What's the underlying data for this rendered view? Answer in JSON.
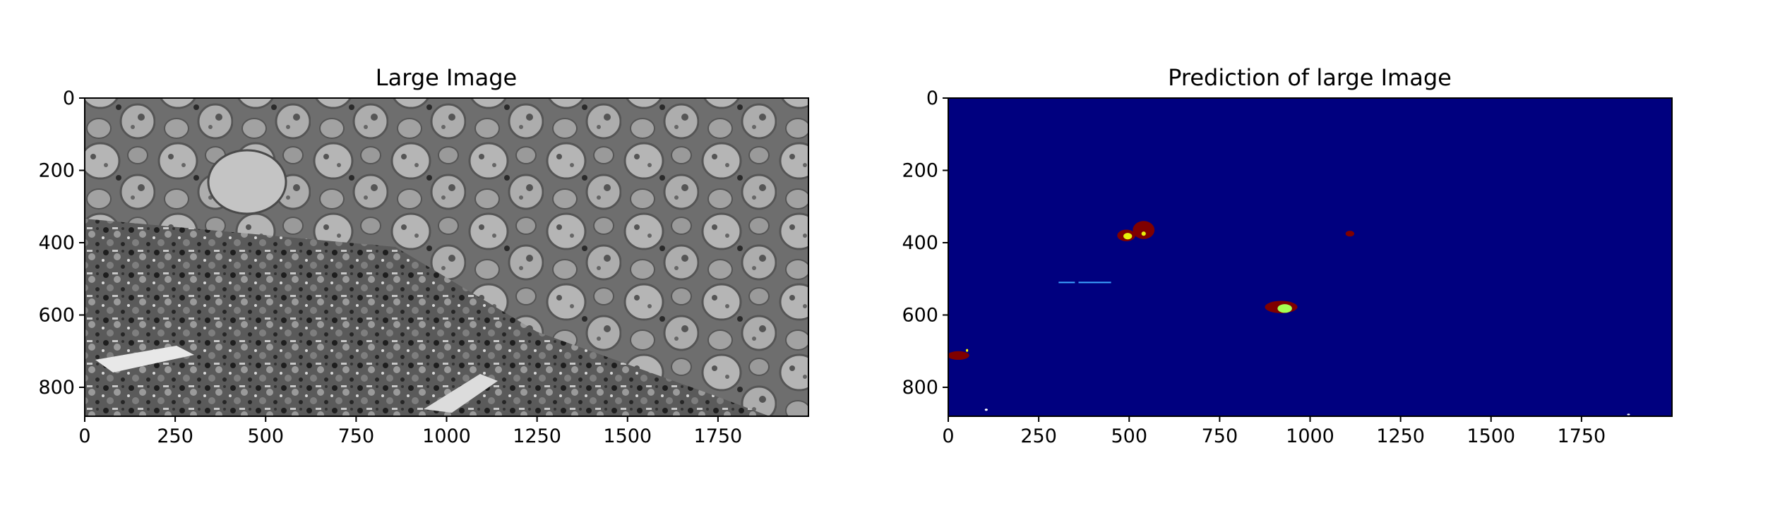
{
  "chart_data": [
    {
      "type": "heatmap",
      "title": "Large Image",
      "colormap": "gray",
      "xlim": [
        0,
        2000
      ],
      "ylim": [
        880,
        0
      ],
      "xticks": [
        0,
        250,
        500,
        750,
        1000,
        1250,
        1500,
        1750
      ],
      "yticks": [
        0,
        200,
        400,
        600,
        800
      ],
      "regions": [
        {
          "label": "dense dark tissue",
          "x": [
            0,
            1100
          ],
          "y": [
            330,
            880
          ]
        },
        {
          "label": "round light cells",
          "x": [
            250,
            2000
          ],
          "y": [
            0,
            880
          ]
        }
      ]
    },
    {
      "type": "heatmap",
      "title": "Prediction of large Image",
      "colormap": "jet",
      "background": "#00007f",
      "xlim": [
        0,
        2000
      ],
      "ylim": [
        880,
        0
      ],
      "xticks": [
        0,
        250,
        500,
        750,
        1000,
        1250,
        1500,
        1750
      ],
      "yticks": [
        0,
        200,
        400,
        600,
        800
      ],
      "blobs": [
        {
          "cx": 540,
          "cy": 365,
          "rx": 30,
          "ry": 25,
          "color": "#7f0000"
        },
        {
          "cx": 492,
          "cy": 380,
          "rx": 25,
          "ry": 16,
          "color": "#7f0000"
        },
        {
          "cx": 496,
          "cy": 382,
          "rx": 12,
          "ry": 9,
          "color": "#e6f00a"
        },
        {
          "cx": 540,
          "cy": 375,
          "rx": 6,
          "ry": 6,
          "color": "#e6f00a"
        },
        {
          "cx": 1110,
          "cy": 375,
          "rx": 12,
          "ry": 8,
          "color": "#7f0000"
        },
        {
          "cx": 920,
          "cy": 578,
          "rx": 45,
          "ry": 17,
          "color": "#7f0000"
        },
        {
          "cx": 930,
          "cy": 582,
          "rx": 20,
          "ry": 12,
          "color": "#a5ff52"
        },
        {
          "cx": 28,
          "cy": 712,
          "rx": 30,
          "ry": 12,
          "color": "#7f0000"
        },
        {
          "cx": 52,
          "cy": 698,
          "rx": 3,
          "ry": 4,
          "color": "#ffff00"
        },
        {
          "cx": 105,
          "cy": 862,
          "rx": 4,
          "ry": 3,
          "color": "#ffffff"
        },
        {
          "cx": 1880,
          "cy": 875,
          "rx": 4,
          "ry": 2,
          "color": "#ffffff"
        }
      ],
      "segments": [
        {
          "x": [
            305,
            350
          ],
          "y": 510,
          "color": "#3da5ff"
        },
        {
          "x": [
            360,
            450
          ],
          "y": 510,
          "color": "#3da5ff"
        }
      ]
    }
  ]
}
